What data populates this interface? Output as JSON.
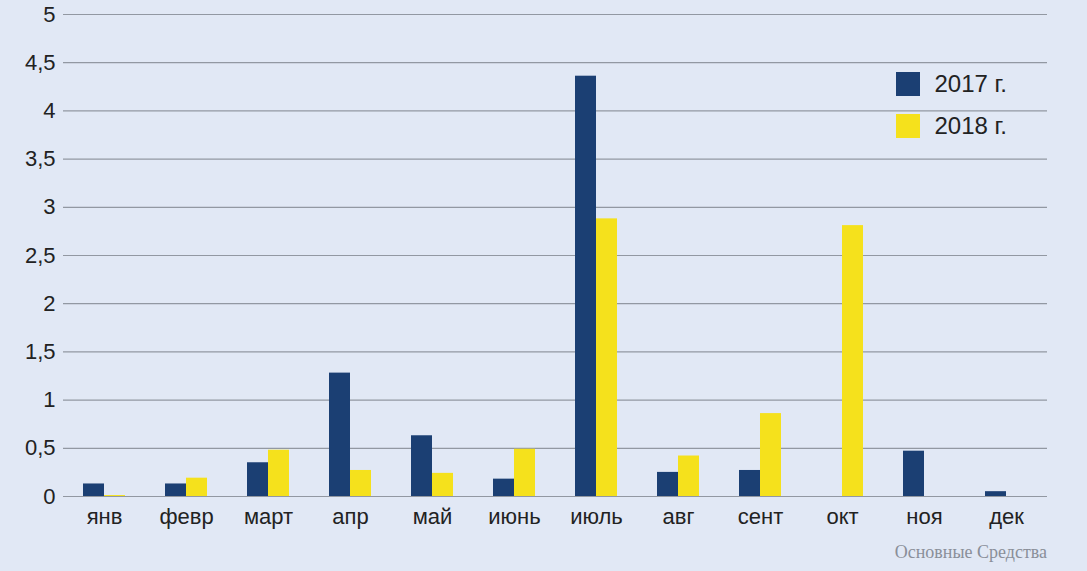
{
  "chart_data": {
    "type": "bar",
    "categories": [
      "янв",
      "февр",
      "март",
      "апр",
      "май",
      "июнь",
      "июль",
      "авг",
      "сент",
      "окт",
      "ноя",
      "дек"
    ],
    "series": [
      {
        "name": "2017 г.",
        "color": "#1b3f73",
        "values": [
          0.13,
          0.13,
          0.35,
          1.28,
          0.63,
          0.18,
          4.36,
          0.25,
          0.27,
          null,
          0.47,
          0.05
        ]
      },
      {
        "name": "2018 г.",
        "color": "#f5e11c",
        "values": [
          0.01,
          0.19,
          0.48,
          0.27,
          0.24,
          0.49,
          2.88,
          0.42,
          0.86,
          2.81,
          null,
          null
        ]
      }
    ],
    "ylim": [
      0,
      5
    ],
    "yticks": [
      0,
      {
        "value": 0.5,
        "label": "0,5"
      },
      1,
      {
        "value": 1.5,
        "label": "1,5"
      },
      2,
      {
        "value": 2.5,
        "label": "2,5"
      },
      3,
      {
        "value": 3.5,
        "label": "3,5"
      },
      4,
      {
        "value": 4.5,
        "label": "4,5"
      },
      5
    ],
    "grid": true,
    "legend": "top-right",
    "annotation": "Основные Средства"
  }
}
